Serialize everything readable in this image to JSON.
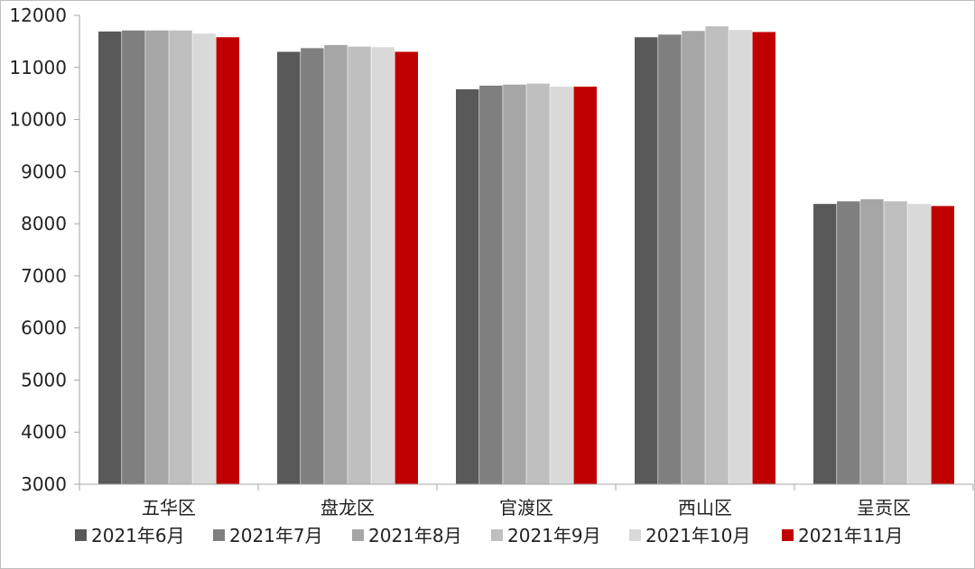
{
  "chart_data": {
    "type": "bar",
    "title": "",
    "xlabel": "",
    "ylabel": "",
    "ylim": [
      3000,
      12000
    ],
    "yticks": [
      3000,
      4000,
      5000,
      6000,
      7000,
      8000,
      9000,
      10000,
      11000,
      12000
    ],
    "grid": false,
    "legend_position": "bottom",
    "categories": [
      "五华区",
      "盘龙区",
      "官渡区",
      "西山区",
      "呈贡区"
    ],
    "series": [
      {
        "name": "2021年6月",
        "color": "#595959",
        "values": [
          11690,
          11300,
          10580,
          11580,
          8380
        ]
      },
      {
        "name": "2021年7月",
        "color": "#7f7f7f",
        "values": [
          11710,
          11370,
          10650,
          11630,
          8430
        ]
      },
      {
        "name": "2021年8月",
        "color": "#a6a6a6",
        "values": [
          11710,
          11430,
          10670,
          11700,
          8470
        ]
      },
      {
        "name": "2021年9月",
        "color": "#bfbfbf",
        "values": [
          11710,
          11400,
          10690,
          11790,
          8430
        ]
      },
      {
        "name": "2021年10月",
        "color": "#d9d9d9",
        "values": [
          11650,
          11390,
          10630,
          11720,
          8380
        ]
      },
      {
        "name": "2021年11月",
        "color": "#c00000",
        "values": [
          11580,
          11300,
          10630,
          11680,
          8340
        ]
      }
    ]
  }
}
